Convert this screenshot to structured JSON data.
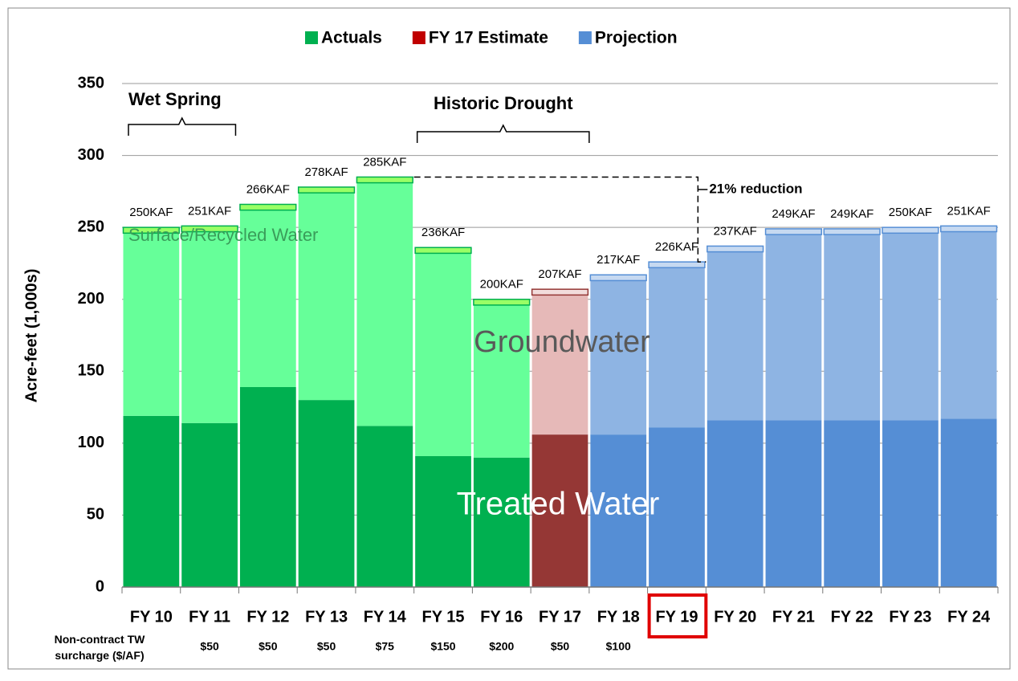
{
  "chart_data": {
    "type": "stacked_bar",
    "legend": [
      {
        "name": "Actuals",
        "color": "#00b050",
        "colors": [
          "#00b050",
          "#66ff99",
          "#99ff66"
        ]
      },
      {
        "name": "FY 17 Estimate",
        "color": "#c00000",
        "colors": [
          "#953735",
          "#e6b9b8",
          "#f2dcdb"
        ]
      },
      {
        "name": "Projection",
        "color": "#558ed5",
        "colors": [
          "#558ed5",
          "#8eb4e3",
          "#c6d9f1"
        ]
      }
    ],
    "phase_of_category": [
      0,
      0,
      0,
      0,
      0,
      0,
      0,
      1,
      2,
      2,
      2,
      2,
      2,
      2,
      2
    ],
    "ylabel": "Acre-feet (1,000s)",
    "categories": [
      "FY 10",
      "FY 11",
      "FY 12",
      "FY 13",
      "FY 14",
      "FY 15",
      "FY 16",
      "FY 17",
      "FY 18",
      "FY 19",
      "FY 20",
      "FY 21",
      "FY 22",
      "FY 23",
      "FY 24"
    ],
    "series": [
      {
        "name": "Treated Water",
        "values": [
          119,
          114,
          139,
          130,
          112,
          91,
          90,
          106,
          106,
          111,
          116,
          116,
          116,
          116,
          117
        ]
      },
      {
        "name": "Groundwater",
        "values": [
          127,
          133,
          123,
          144,
          169,
          141,
          106,
          97,
          107,
          111,
          117,
          129,
          129,
          130,
          130
        ]
      },
      {
        "name": "Surface/Recycled Water",
        "values": [
          4,
          4,
          4,
          4,
          4,
          4,
          4,
          4,
          4,
          4,
          4,
          4,
          4,
          4,
          4
        ]
      }
    ],
    "totals": {
      "values": [
        250,
        251,
        266,
        278,
        285,
        236,
        200,
        207,
        217,
        226,
        237,
        249,
        249,
        250,
        251
      ],
      "value_labels": [
        "250KAF",
        "251KAF",
        "266KAF",
        "278KAF",
        "285KAF",
        "236KAF",
        "200KAF",
        "207KAF",
        "217KAF",
        "226KAF",
        "237KAF",
        "249KAF",
        "249KAF",
        "250KAF",
        "251KAF"
      ]
    },
    "ylim": [
      0,
      350
    ],
    "yticks": [
      0,
      50,
      100,
      150,
      200,
      250,
      300,
      350
    ],
    "grid": true,
    "annotations": [
      "Wet Spring",
      "Historic Drought",
      "21% reduction"
    ],
    "highlight_category": 9,
    "surcharge": {
      "label": "Non-contract TW surcharge ($/AF)",
      "values": [
        null,
        50,
        50,
        50,
        75,
        150,
        200,
        50,
        100,
        null,
        null,
        null,
        null,
        null,
        null
      ],
      "value_labels": [
        null,
        "$50",
        "$50",
        "$50",
        "$75",
        "$150",
        "$200",
        "$50",
        "$100",
        null,
        null,
        null,
        null,
        null,
        null
      ]
    }
  }
}
